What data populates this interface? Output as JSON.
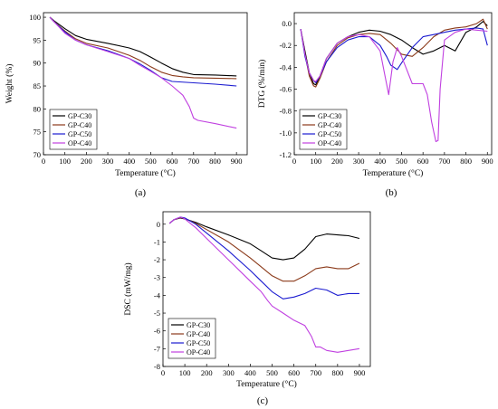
{
  "colors": {
    "GP-C30": "#000000",
    "GP-C40": "#8B3A1A",
    "GP-C50": "#1a1ad0",
    "OP-C40": "#c040e0"
  },
  "chart_data": [
    {
      "id": "a",
      "panel_label": "(a)",
      "type": "line",
      "title": "",
      "xlabel": "Temperature (°C)",
      "ylabel": "Weight (%)",
      "xlim": [
        0,
        950
      ],
      "ylim": [
        70,
        101
      ],
      "xticks": [
        0,
        100,
        200,
        300,
        400,
        500,
        600,
        700,
        800,
        900
      ],
      "yticks": [
        70,
        75,
        80,
        85,
        90,
        95,
        100
      ],
      "legend_position": "bottom-left",
      "series": [
        {
          "name": "GP-C30",
          "x": [
            30,
            50,
            100,
            150,
            200,
            300,
            400,
            450,
            500,
            550,
            600,
            650,
            700,
            800,
            900
          ],
          "y": [
            100,
            99.2,
            97.5,
            96.0,
            95.2,
            94.3,
            93.3,
            92.5,
            91.3,
            90.0,
            88.8,
            88.0,
            87.5,
            87.4,
            87.2
          ]
        },
        {
          "name": "GP-C40",
          "x": [
            30,
            50,
            100,
            150,
            200,
            300,
            400,
            450,
            500,
            550,
            600,
            650,
            700,
            800,
            900
          ],
          "y": [
            100,
            99.0,
            97.0,
            95.3,
            94.3,
            93.3,
            91.7,
            90.6,
            89.2,
            88.0,
            87.3,
            87.0,
            86.8,
            86.7,
            86.6
          ]
        },
        {
          "name": "GP-C50",
          "x": [
            30,
            50,
            100,
            150,
            200,
            300,
            400,
            450,
            500,
            550,
            600,
            700,
            800,
            900
          ],
          "y": [
            100,
            99.0,
            96.8,
            95.0,
            94.0,
            92.7,
            91.0,
            89.8,
            88.4,
            86.8,
            86.0,
            85.7,
            85.4,
            85.0
          ]
        },
        {
          "name": "OP-C40",
          "x": [
            30,
            50,
            100,
            150,
            200,
            300,
            400,
            450,
            500,
            550,
            600,
            650,
            680,
            700,
            720,
            800,
            900
          ],
          "y": [
            100,
            99.0,
            96.5,
            95.0,
            94.0,
            92.5,
            91.0,
            89.5,
            88.2,
            86.8,
            85.0,
            83.0,
            80.5,
            78.0,
            77.5,
            76.8,
            75.8
          ]
        }
      ]
    },
    {
      "id": "b",
      "panel_label": "(b)",
      "type": "line",
      "title": "",
      "xlabel": "Temperature (°C)",
      "ylabel": "DTG (%/min)",
      "xlim": [
        0,
        920
      ],
      "ylim": [
        -1.2,
        0.1
      ],
      "xticks": [
        0,
        100,
        200,
        300,
        400,
        500,
        600,
        700,
        800,
        900
      ],
      "yticks": [
        0.0,
        -0.2,
        -0.4,
        -0.6,
        -0.8,
        -1.0,
        -1.2
      ],
      "ytick_labels": [
        "0.0",
        "-0.2",
        "-0.4",
        "-0.6",
        "-0.8",
        "-1.0",
        "-1.2"
      ],
      "legend_position": "bottom-left",
      "series": [
        {
          "name": "GP-C30",
          "x": [
            30,
            50,
            70,
            90,
            100,
            120,
            150,
            200,
            250,
            300,
            350,
            400,
            450,
            500,
            550,
            600,
            650,
            700,
            750,
            800,
            850,
            880,
            900
          ],
          "y": [
            -0.05,
            -0.25,
            -0.45,
            -0.55,
            -0.56,
            -0.48,
            -0.32,
            -0.18,
            -0.12,
            -0.08,
            -0.06,
            -0.07,
            -0.1,
            -0.15,
            -0.22,
            -0.28,
            -0.25,
            -0.2,
            -0.25,
            -0.08,
            -0.03,
            0.02,
            -0.02
          ]
        },
        {
          "name": "GP-C40",
          "x": [
            30,
            50,
            70,
            90,
            100,
            120,
            150,
            200,
            250,
            300,
            350,
            400,
            450,
            500,
            550,
            600,
            650,
            700,
            750,
            800,
            850,
            880,
            900
          ],
          "y": [
            -0.05,
            -0.28,
            -0.48,
            -0.57,
            -0.58,
            -0.5,
            -0.35,
            -0.2,
            -0.13,
            -0.1,
            -0.09,
            -0.1,
            -0.18,
            -0.28,
            -0.3,
            -0.22,
            -0.12,
            -0.06,
            -0.04,
            -0.03,
            0.0,
            0.04,
            -0.05
          ]
        },
        {
          "name": "GP-C50",
          "x": [
            30,
            50,
            70,
            90,
            100,
            120,
            150,
            200,
            250,
            300,
            350,
            400,
            430,
            450,
            480,
            500,
            550,
            600,
            650,
            700,
            750,
            800,
            850,
            880,
            900
          ],
          "y": [
            -0.05,
            -0.3,
            -0.45,
            -0.52,
            -0.54,
            -0.48,
            -0.35,
            -0.22,
            -0.15,
            -0.12,
            -0.12,
            -0.2,
            -0.3,
            -0.38,
            -0.42,
            -0.36,
            -0.22,
            -0.12,
            -0.1,
            -0.08,
            -0.06,
            -0.05,
            -0.04,
            -0.05,
            -0.2
          ]
        },
        {
          "name": "OP-C40",
          "x": [
            30,
            50,
            70,
            90,
            100,
            120,
            150,
            200,
            250,
            300,
            350,
            400,
            420,
            440,
            460,
            480,
            500,
            550,
            600,
            620,
            640,
            660,
            670,
            680,
            700,
            750,
            800,
            850,
            900
          ],
          "y": [
            -0.05,
            -0.28,
            -0.45,
            -0.52,
            -0.53,
            -0.48,
            -0.32,
            -0.18,
            -0.12,
            -0.1,
            -0.12,
            -0.25,
            -0.45,
            -0.65,
            -0.35,
            -0.22,
            -0.3,
            -0.55,
            -0.55,
            -0.65,
            -0.9,
            -1.08,
            -1.07,
            -0.6,
            -0.15,
            -0.08,
            -0.05,
            -0.06,
            -0.07
          ]
        }
      ]
    },
    {
      "id": "c",
      "panel_label": "(c)",
      "type": "line",
      "title": "",
      "xlabel": "Temperature (°C)",
      "ylabel": "DSC (mW/mg)",
      "xlim": [
        0,
        950
      ],
      "ylim": [
        -8,
        0.7
      ],
      "xticks": [
        0,
        100,
        200,
        300,
        400,
        500,
        600,
        700,
        800,
        900
      ],
      "yticks": [
        0,
        -1,
        -2,
        -3,
        -4,
        -5,
        -6,
        -7,
        -8
      ],
      "legend_position": "bottom-left",
      "series": [
        {
          "name": "GP-C30",
          "x": [
            30,
            50,
            80,
            100,
            150,
            200,
            300,
            400,
            450,
            500,
            550,
            600,
            650,
            700,
            750,
            800,
            850,
            900
          ],
          "y": [
            0.05,
            0.25,
            0.35,
            0.3,
            0.1,
            -0.15,
            -0.6,
            -1.1,
            -1.5,
            -1.9,
            -2.0,
            -1.9,
            -1.4,
            -0.7,
            -0.55,
            -0.6,
            -0.65,
            -0.8
          ]
        },
        {
          "name": "GP-C40",
          "x": [
            30,
            50,
            80,
            100,
            150,
            200,
            300,
            400,
            450,
            500,
            550,
            600,
            650,
            700,
            750,
            800,
            850,
            900
          ],
          "y": [
            0.05,
            0.25,
            0.38,
            0.32,
            0.05,
            -0.3,
            -1.0,
            -1.9,
            -2.4,
            -2.9,
            -3.2,
            -3.2,
            -2.9,
            -2.5,
            -2.4,
            -2.5,
            -2.5,
            -2.2
          ]
        },
        {
          "name": "GP-C50",
          "x": [
            30,
            50,
            80,
            100,
            150,
            200,
            300,
            400,
            450,
            500,
            550,
            600,
            650,
            700,
            750,
            800,
            850,
            900
          ],
          "y": [
            0.05,
            0.25,
            0.4,
            0.35,
            0.0,
            -0.5,
            -1.5,
            -2.6,
            -3.2,
            -3.8,
            -4.2,
            -4.1,
            -3.9,
            -3.6,
            -3.7,
            -4.0,
            -3.9,
            -3.9
          ]
        },
        {
          "name": "OP-C40",
          "x": [
            30,
            50,
            80,
            100,
            150,
            200,
            300,
            400,
            450,
            480,
            500,
            550,
            600,
            650,
            680,
            700,
            720,
            750,
            800,
            850,
            900
          ],
          "y": [
            0.05,
            0.25,
            0.4,
            0.3,
            -0.2,
            -0.8,
            -2.0,
            -3.2,
            -3.8,
            -4.3,
            -4.6,
            -5.0,
            -5.4,
            -5.7,
            -6.3,
            -6.9,
            -6.9,
            -7.1,
            -7.2,
            -7.1,
            -7.0
          ]
        }
      ]
    }
  ]
}
